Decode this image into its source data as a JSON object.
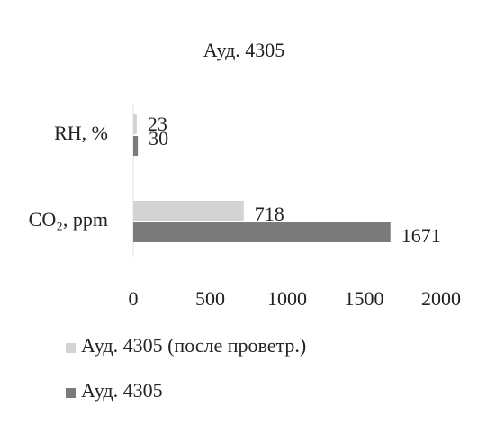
{
  "chart_data": {
    "type": "bar",
    "orientation": "horizontal",
    "title": "Ауд. 4305",
    "categories": [
      "RH, %",
      "CO₂, ppm"
    ],
    "series": [
      {
        "name": "Ауд. 4305 (после проветр.)",
        "color": "#d3d3d3",
        "values": [
          23,
          718
        ]
      },
      {
        "name": "Ауд. 4305",
        "color": "#7b7b7b",
        "values": [
          30,
          1671
        ]
      }
    ],
    "xlim": [
      0,
      2000
    ],
    "xticks": [
      0,
      500,
      1000,
      1500,
      2000
    ],
    "grid": false
  }
}
